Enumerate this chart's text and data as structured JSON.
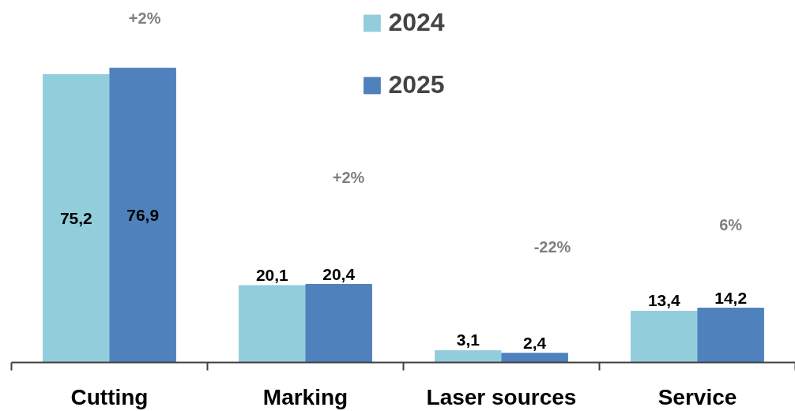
{
  "chart_data": {
    "type": "bar",
    "categories": [
      "Cutting",
      "Marking",
      "Laser sources",
      "Service"
    ],
    "series": [
      {
        "name": "2024",
        "color": "#92cddc",
        "values": [
          75.2,
          20.1,
          3.1,
          13.4
        ],
        "value_labels": [
          "75,2",
          "20,1",
          "3,1",
          "13,4"
        ]
      },
      {
        "name": "2025",
        "color": "#4f81bd",
        "values": [
          76.9,
          20.4,
          2.4,
          14.2
        ],
        "value_labels": [
          "76,9",
          "20,4",
          "2,4",
          "14,2"
        ]
      }
    ],
    "annotations": [
      "+2%",
      "+2%",
      "-22%",
      "6%"
    ],
    "legend": "top",
    "grid": false,
    "tick_labels": "x"
  }
}
